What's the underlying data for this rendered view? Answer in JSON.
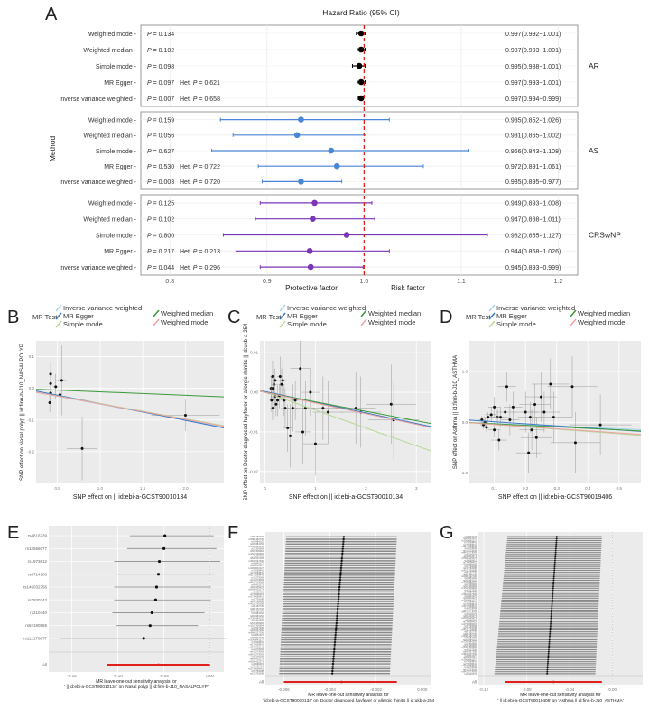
{
  "chart_data": [
    {
      "panel": "A",
      "type": "forest",
      "title": "Hazard Ratio (95% CI)",
      "ylabel": "Method",
      "xlim": [
        0.77,
        1.22
      ],
      "xticks": [
        0.8,
        0.9,
        1.0,
        1.1,
        1.2
      ],
      "xtick_labels": [
        "0.8",
        "0.9",
        "1.0",
        "1.1",
        "1.2"
      ],
      "reference_line": 1.0,
      "protective_label": "Protective factor",
      "risk_label": "Risk factor",
      "groups": [
        {
          "name": "AR",
          "color": "#000000",
          "rows": [
            {
              "method": "Weighted mode",
              "p": "0.134",
              "het_p": "",
              "or": 0.997,
              "lo": 0.992,
              "hi": 1.001,
              "ci_text": "0.997(0.992−1.001)"
            },
            {
              "method": "Weighted median",
              "p": "0.102",
              "het_p": "",
              "or": 0.997,
              "lo": 0.993,
              "hi": 1.001,
              "ci_text": "0.997(0.993−1.001)"
            },
            {
              "method": "Simple mode",
              "p": "0.098",
              "het_p": "",
              "or": 0.995,
              "lo": 0.988,
              "hi": 1.001,
              "ci_text": "0.995(0.988−1.001)"
            },
            {
              "method": "MR Egger",
              "p": "0.097",
              "het_p": "0.621",
              "or": 0.997,
              "lo": 0.993,
              "hi": 1.001,
              "ci_text": "0.997(0.993−1.001)"
            },
            {
              "method": "Inverse variance weighted",
              "p": "0.007",
              "het_p": "0.658",
              "or": 0.997,
              "lo": 0.994,
              "hi": 0.999,
              "ci_text": "0.997(0.994−0.999)"
            }
          ]
        },
        {
          "name": "AS",
          "color": "#4a86d8",
          "rows": [
            {
              "method": "Weighted mode",
              "p": "0.159",
              "het_p": "",
              "or": 0.935,
              "lo": 0.852,
              "hi": 1.026,
              "ci_text": "0.935(0.852−1.026)"
            },
            {
              "method": "Weighted median",
              "p": "0.056",
              "het_p": "",
              "or": 0.931,
              "lo": 0.865,
              "hi": 1.002,
              "ci_text": "0.931(0.865−1.002)"
            },
            {
              "method": "Simple mode",
              "p": "0.627",
              "het_p": "",
              "or": 0.966,
              "lo": 0.843,
              "hi": 1.108,
              "ci_text": "0.966(0.843−1.108)"
            },
            {
              "method": "MR Egger",
              "p": "0.530",
              "het_p": "0.722",
              "or": 0.972,
              "lo": 0.891,
              "hi": 1.061,
              "ci_text": "0.972(0.891−1.061)"
            },
            {
              "method": "Inverse variance weighted",
              "p": "0.003",
              "het_p": "0.720",
              "or": 0.935,
              "lo": 0.895,
              "hi": 0.977,
              "ci_text": "0.935(0.895−0.977)"
            }
          ]
        },
        {
          "name": "CRSwNP",
          "color": "#7b35b8",
          "rows": [
            {
              "method": "Weighted mode",
              "p": "0.125",
              "het_p": "",
              "or": 0.949,
              "lo": 0.893,
              "hi": 1.008,
              "ci_text": "0.949(0.893−1.008)"
            },
            {
              "method": "Weighted median",
              "p": "0.102",
              "het_p": "",
              "or": 0.947,
              "lo": 0.888,
              "hi": 1.011,
              "ci_text": "0.947(0.888−1.011)"
            },
            {
              "method": "Simple mode",
              "p": "0.800",
              "het_p": "",
              "or": 0.982,
              "lo": 0.855,
              "hi": 1.127,
              "ci_text": "0.982(0.855−1.127)"
            },
            {
              "method": "MR Egger",
              "p": "0.217",
              "het_p": "0.213",
              "or": 0.944,
              "lo": 0.868,
              "hi": 1.026,
              "ci_text": "0.944(0.868−1.026)"
            },
            {
              "method": "Inverse variance weighted",
              "p": "0.044",
              "het_p": "0.296",
              "or": 0.945,
              "lo": 0.893,
              "hi": 0.999,
              "ci_text": "0.945(0.893−0.999)"
            }
          ]
        }
      ]
    },
    {
      "panel": "B",
      "type": "scatter",
      "legend_title": "MR Test",
      "legend": [
        "Inverse variance weighted",
        "MR Egger",
        "Simple mode",
        "Weighted median",
        "Weighted mode"
      ],
      "xlabel": "SNP effect on  || id:ebi-a-GCST90010134",
      "ylabel": "SNP effect on Nasal polyp || id:finn-b-J10_NASALPOLYP",
      "xlim": [
        0.25,
        2.45
      ],
      "ylim": [
        -0.3,
        0.15
      ],
      "xticks": [
        0.5,
        1.0,
        1.5,
        2.0
      ],
      "xtick_labels": [
        "0.5",
        "1.0",
        "1.5",
        "2.0"
      ],
      "yticks": [
        0.1,
        0.0,
        -0.1,
        -0.2
      ],
      "ytick_labels": [
        "0.1",
        "0.0",
        "-0.1",
        "-0.2"
      ],
      "points": [
        {
          "x": 0.42,
          "y": 0.045,
          "sx": 0.02,
          "sy": 0.04
        },
        {
          "x": 0.42,
          "y": 0.015,
          "sx": 0.02,
          "sy": 0.03
        },
        {
          "x": 0.42,
          "y": -0.015,
          "sx": 0.02,
          "sy": 0.03
        },
        {
          "x": 0.41,
          "y": -0.045,
          "sx": 0.02,
          "sy": 0.03
        },
        {
          "x": 0.48,
          "y": 0.005,
          "sx": 0.03,
          "sy": 0.04
        },
        {
          "x": 0.55,
          "y": 0.025,
          "sx": 0.06,
          "sy": 0.11
        },
        {
          "x": 0.53,
          "y": -0.02,
          "sx": 0.03,
          "sy": 0.04
        },
        {
          "x": 0.79,
          "y": -0.19,
          "sx": 0.18,
          "sy": 0.1
        },
        {
          "x": 2.0,
          "y": -0.085,
          "sx": 0.4,
          "sy": 0.05
        }
      ],
      "lines": [
        {
          "name": "Inverse variance weighted",
          "intercept": 0,
          "slope": -0.05
        },
        {
          "name": "MR Egger",
          "intercept": 0.005,
          "slope": -0.053
        },
        {
          "name": "Simple mode",
          "intercept": 0,
          "slope": -0.048
        },
        {
          "name": "Weighted median",
          "intercept": 0,
          "slope": -0.011
        },
        {
          "name": "Weighted mode",
          "intercept": 0,
          "slope": -0.049
        }
      ]
    },
    {
      "panel": "C",
      "type": "scatter",
      "legend_title": "MR Test",
      "legend": [
        "Inverse variance weighted",
        "MR Egger",
        "Simple mode",
        "Weighted median",
        "Weighted mode"
      ],
      "xlabel": "SNP effect on || id:ebi-a-GCST90010134",
      "ylabel": "SNP effect on Doctor diagnosed hayfever or allergic rhinitis || id:ukb-a-254",
      "xlim": [
        -0.1,
        3.3
      ],
      "ylim": [
        -0.023,
        0.013
      ],
      "xticks": [
        0,
        1,
        2,
        3
      ],
      "xtick_labels": [
        "0",
        "1",
        "2",
        "3"
      ],
      "yticks": [
        0.01,
        0.0,
        -0.01,
        -0.02
      ],
      "ytick_labels": [
        "0.01",
        "0.00",
        "-0.01",
        "-0.02"
      ],
      "points": [
        {
          "x": 0.15,
          "y": 0.004,
          "sx": 0.05,
          "sy": 0.004
        },
        {
          "x": 0.18,
          "y": 0.002,
          "sx": 0.05,
          "sy": 0.003
        },
        {
          "x": 0.2,
          "y": -0.001,
          "sx": 0.05,
          "sy": 0.003
        },
        {
          "x": 0.22,
          "y": -0.003,
          "sx": 0.05,
          "sy": 0.003
        },
        {
          "x": 0.15,
          "y": -0.004,
          "sx": 0.05,
          "sy": 0.003
        },
        {
          "x": 0.25,
          "y": -0.002,
          "sx": 0.06,
          "sy": 0.004
        },
        {
          "x": 0.3,
          "y": 0.004,
          "sx": 0.06,
          "sy": 0.005
        },
        {
          "x": 0.35,
          "y": 0.003,
          "sx": 0.07,
          "sy": 0.005
        },
        {
          "x": 0.4,
          "y": -0.004,
          "sx": 0.08,
          "sy": 0.005
        },
        {
          "x": 0.45,
          "y": -0.009,
          "sx": 0.08,
          "sy": 0.006
        },
        {
          "x": 0.5,
          "y": -0.011,
          "sx": 0.09,
          "sy": 0.008
        },
        {
          "x": 0.55,
          "y": -0.004,
          "sx": 0.1,
          "sy": 0.006
        },
        {
          "x": 0.7,
          "y": 0.006,
          "sx": 0.2,
          "sy": 0.008
        },
        {
          "x": 0.75,
          "y": -0.01,
          "sx": 0.15,
          "sy": 0.008
        },
        {
          "x": 0.8,
          "y": -0.004,
          "sx": 0.2,
          "sy": 0.007
        },
        {
          "x": 0.9,
          "y": 0.0,
          "sx": 0.2,
          "sy": 0.006
        },
        {
          "x": 1.0,
          "y": -0.013,
          "sx": 0.25,
          "sy": 0.008
        },
        {
          "x": 1.15,
          "y": -0.004,
          "sx": 0.3,
          "sy": 0.008
        },
        {
          "x": 1.25,
          "y": -0.005,
          "sx": 0.3,
          "sy": 0.008
        },
        {
          "x": 1.8,
          "y": -0.004,
          "sx": 0.4,
          "sy": 0.009
        },
        {
          "x": 1.9,
          "y": -0.005,
          "sx": 0.4,
          "sy": 0.009
        },
        {
          "x": 2.5,
          "y": -0.003,
          "sx": 0.5,
          "sy": 0.01
        },
        {
          "x": 2.55,
          "y": -0.007,
          "sx": 0.5,
          "sy": 0.01
        },
        {
          "x": 0.12,
          "y": 0.001,
          "sx": 0.04,
          "sy": 0.003
        },
        {
          "x": 0.13,
          "y": -0.002,
          "sx": 0.04,
          "sy": 0.003
        },
        {
          "x": 0.16,
          "y": 0.001,
          "sx": 0.04,
          "sy": 0.003
        },
        {
          "x": 0.2,
          "y": 0.003,
          "sx": 0.05,
          "sy": 0.003
        },
        {
          "x": 0.28,
          "y": -0.001,
          "sx": 0.05,
          "sy": 0.003
        },
        {
          "x": 0.33,
          "y": 0.002,
          "sx": 0.06,
          "sy": 0.004
        },
        {
          "x": 0.38,
          "y": -0.002,
          "sx": 0.06,
          "sy": 0.004
        },
        {
          "x": 0.6,
          "y": -0.002,
          "sx": 0.1,
          "sy": 0.005
        }
      ],
      "lines": [
        {
          "name": "Inverse variance weighted",
          "intercept": 0,
          "slope": -0.0026
        },
        {
          "name": "MR Egger",
          "intercept": 0.0002,
          "slope": -0.0027
        },
        {
          "name": "Simple mode",
          "intercept": 0,
          "slope": -0.0045
        },
        {
          "name": "Weighted median",
          "intercept": 0,
          "slope": -0.0024
        },
        {
          "name": "Weighted mode",
          "intercept": 0,
          "slope": -0.0027
        }
      ]
    },
    {
      "panel": "D",
      "type": "scatter",
      "legend_title": "MR Test",
      "legend": [
        "Inverse variance weighted",
        "MR Egger",
        "Simple mode",
        "Weighted median",
        "Weighted mode"
      ],
      "xlabel": "SNP effect on || id:ebi-a-GCST90019406",
      "ylabel": "SNP effect on Asthma || id:finn-b-J10_ASTHMA",
      "xlim": [
        0.02,
        0.57
      ],
      "ylim": [
        -1.2,
        1.6
      ],
      "xticks": [
        0.1,
        0.2,
        0.3,
        0.4,
        0.5
      ],
      "xtick_labels": [
        "0.1",
        "0.2",
        "0.3",
        "0.4",
        "0.5"
      ],
      "yticks": [
        1.0,
        0.0,
        -1.0
      ],
      "ytick_labels": [
        "1.0",
        "0.0",
        "-1.0"
      ],
      "points": [
        {
          "x": 0.06,
          "y": 0.05,
          "sx": 0.01,
          "sy": 0.08
        },
        {
          "x": 0.065,
          "y": -0.05,
          "sx": 0.01,
          "sy": 0.08
        },
        {
          "x": 0.07,
          "y": 0.0,
          "sx": 0.01,
          "sy": 0.08
        },
        {
          "x": 0.075,
          "y": -0.1,
          "sx": 0.01,
          "sy": 0.1
        },
        {
          "x": 0.08,
          "y": 0.1,
          "sx": 0.015,
          "sy": 0.1
        },
        {
          "x": 0.09,
          "y": 0.15,
          "sx": 0.02,
          "sy": 0.15
        },
        {
          "x": 0.1,
          "y": 0.3,
          "sx": 0.02,
          "sy": 0.2
        },
        {
          "x": 0.1,
          "y": -0.15,
          "sx": 0.02,
          "sy": 0.15
        },
        {
          "x": 0.11,
          "y": 0.1,
          "sx": 0.02,
          "sy": 0.15
        },
        {
          "x": 0.115,
          "y": -0.35,
          "sx": 0.025,
          "sy": 0.2
        },
        {
          "x": 0.12,
          "y": 0.1,
          "sx": 0.025,
          "sy": 0.2
        },
        {
          "x": 0.135,
          "y": 0.2,
          "sx": 0.03,
          "sy": 0.3
        },
        {
          "x": 0.14,
          "y": 0.7,
          "sx": 0.03,
          "sy": 0.3
        },
        {
          "x": 0.15,
          "y": 0.05,
          "sx": 0.03,
          "sy": 0.3
        },
        {
          "x": 0.16,
          "y": 0.3,
          "sx": 0.03,
          "sy": 0.3
        },
        {
          "x": 0.2,
          "y": 0.2,
          "sx": 0.04,
          "sy": 0.4
        },
        {
          "x": 0.21,
          "y": -0.6,
          "sx": 0.04,
          "sy": 0.4
        },
        {
          "x": 0.215,
          "y": 0.1,
          "sx": 0.04,
          "sy": 0.3
        },
        {
          "x": 0.22,
          "y": -0.15,
          "sx": 0.04,
          "sy": 0.4
        },
        {
          "x": 0.23,
          "y": 0.35,
          "sx": 0.05,
          "sy": 0.4
        },
        {
          "x": 0.235,
          "y": -0.3,
          "sx": 0.05,
          "sy": 0.4
        },
        {
          "x": 0.25,
          "y": 0.5,
          "sx": 0.05,
          "sy": 0.5
        },
        {
          "x": 0.26,
          "y": 0.2,
          "sx": 0.05,
          "sy": 0.4
        },
        {
          "x": 0.28,
          "y": 0.75,
          "sx": 0.06,
          "sy": 0.5
        },
        {
          "x": 0.29,
          "y": 0.1,
          "sx": 0.06,
          "sy": 0.5
        },
        {
          "x": 0.35,
          "y": 0.7,
          "sx": 0.08,
          "sy": 0.6
        },
        {
          "x": 0.36,
          "y": -0.4,
          "sx": 0.08,
          "sy": 0.6
        },
        {
          "x": 0.44,
          "y": -0.05,
          "sx": 0.1,
          "sy": 0.6
        }
      ],
      "lines": [
        {
          "name": "Inverse variance weighted",
          "intercept": 0,
          "slope": -0.25
        },
        {
          "name": "MR Egger",
          "intercept": 0.05,
          "slope": -0.4
        },
        {
          "name": "Simple mode",
          "intercept": 0,
          "slope": -0.45
        },
        {
          "name": "Weighted median",
          "intercept": 0,
          "slope": -0.3
        },
        {
          "name": "Weighted mode",
          "intercept": 0,
          "slope": -0.42
        }
      ]
    },
    {
      "panel": "E",
      "type": "forest",
      "xlabel_line1": "MR leave-one-out sensitivity analysis for",
      "xlabel_line2": "' || id:ebi-a-GCST90010134' on 'Nasal polyp || id:finn-b-J10_NASALPOLYP'",
      "xlim": [
        -0.175,
        0.015
      ],
      "xticks": [
        -0.15,
        -0.1,
        -0.05,
        0.0
      ],
      "xtick_labels": [
        "-0.15",
        "-0.10",
        "-0.05",
        "0.00"
      ],
      "rows": [
        {
          "snp": "rs4816239",
          "b": -0.049,
          "lo": -0.087,
          "hi": 0.004
        },
        {
          "snp": "rs12566077",
          "b": -0.05,
          "lo": -0.09,
          "hi": 0.007
        },
        {
          "snp": "rs1973612",
          "b": -0.055,
          "lo": -0.104,
          "hi": 0.011
        },
        {
          "snp": "rs4714108",
          "b": -0.056,
          "lo": -0.102,
          "hi": 0.005
        },
        {
          "snp": "rs146032756",
          "b": -0.058,
          "lo": -0.104,
          "hi": 0.001
        },
        {
          "snp": "rs7920342",
          "b": -0.059,
          "lo": -0.104,
          "hi": 0.001
        },
        {
          "snp": "rs210440",
          "b": -0.063,
          "lo": -0.106,
          "hi": -0.006
        },
        {
          "snp": "rs62190565",
          "b": -0.065,
          "lo": -0.102,
          "hi": -0.013
        },
        {
          "snp": "rs112176877",
          "b": -0.072,
          "lo": -0.162,
          "hi": 0.018
        }
      ],
      "all": {
        "label": "All",
        "b": -0.056,
        "lo": -0.112,
        "hi": 0.0
      }
    },
    {
      "panel": "F",
      "type": "forest",
      "xlabel_line1": "MR leave-one-out sensitivity analysis for",
      "xlabel_line2": "' id:ebi-a-GCST90010134' on 'Doctor diagnosed hayfever or allergic rhinitis || id:ukb-a-254",
      "xlim": [
        -0.0068,
        0.0004
      ],
      "xticks": [
        -0.006,
        -0.004,
        -0.002,
        0.0
      ],
      "xtick_labels": [
        "-0.006",
        "-0.004",
        "-0.002",
        "0.000"
      ],
      "n_snps": 58,
      "b_top": -0.0034,
      "b_bottom": -0.0039,
      "lo_top": -0.0059,
      "lo_bottom": -0.0062,
      "hi_top": -0.0011,
      "hi_bottom": -0.0014,
      "all": {
        "label": "All",
        "b": -0.0035,
        "lo": -0.006,
        "hi": -0.0011
      }
    },
    {
      "panel": "G",
      "type": "forest",
      "xlabel_line1": "MR leave-one-out sensitivity analysis for",
      "xlabel_line2": "' || id:ebi-a-GCST90019406' on 'Asthma || id:finn-b-J10_ASTHMA'",
      "xlim": [
        -0.125,
        0.028
      ],
      "xticks": [
        -0.12,
        -0.08,
        -0.04,
        0.0
      ],
      "xtick_labels": [
        "-0.12",
        "-0.08",
        "-0.04",
        "0.00"
      ],
      "n_snps": 70,
      "b_top": -0.052,
      "b_bottom": -0.061,
      "lo_top": -0.098,
      "lo_bottom": -0.11,
      "hi_top": -0.01,
      "hi_bottom": -0.016,
      "all": {
        "label": "All",
        "b": -0.055,
        "lo": -0.1,
        "hi": -0.01
      }
    }
  ],
  "panel_labels": {
    "A": "A",
    "B": "B",
    "C": "C",
    "D": "D",
    "E": "E",
    "F": "F",
    "G": "G"
  },
  "colors": {
    "ivw": "#a8d4e8",
    "egger": "#3a78c8",
    "simple": "#b8d898",
    "wmedian": "#3a9a3a",
    "wmode": "#f0a0a0",
    "ref_line": "#e0201c",
    "all_line": "#e0201c",
    "panel_bg": "#ebebeb"
  }
}
